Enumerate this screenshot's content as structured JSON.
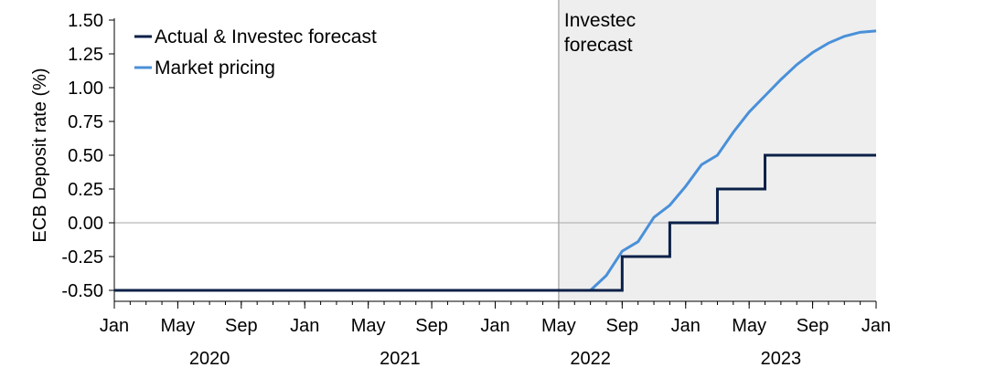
{
  "chart_data": {
    "type": "line",
    "title": "",
    "ylabel": "ECB Deposit rate (%)",
    "xlabel": "",
    "ylim": [
      -0.5,
      1.5
    ],
    "yticks": [
      "1.50",
      "1.25",
      "1.00",
      "0.75",
      "0.50",
      "0.25",
      "0.00",
      "-0.25",
      "-0.50"
    ],
    "ytick_values": [
      1.5,
      1.25,
      1.0,
      0.75,
      0.5,
      0.25,
      0.0,
      -0.25,
      -0.5
    ],
    "xlim": [
      "2020-01",
      "2024-01"
    ],
    "xticks": [
      {
        "date": "2020-01",
        "label": "Jan"
      },
      {
        "date": "2020-05",
        "label": "May"
      },
      {
        "date": "2020-09",
        "label": "Sep"
      },
      {
        "date": "2021-01",
        "label": "Jan"
      },
      {
        "date": "2021-05",
        "label": "May"
      },
      {
        "date": "2021-09",
        "label": "Sep"
      },
      {
        "date": "2022-01",
        "label": "Jan"
      },
      {
        "date": "2022-05",
        "label": "May"
      },
      {
        "date": "2022-09",
        "label": "Sep"
      },
      {
        "date": "2023-01",
        "label": "Jan"
      },
      {
        "date": "2023-05",
        "label": "May"
      },
      {
        "date": "2023-09",
        "label": "Sep"
      },
      {
        "date": "2024-01",
        "label": "Jan"
      }
    ],
    "year_labels": [
      {
        "year": "2020",
        "center": "2020-07"
      },
      {
        "year": "2021",
        "center": "2021-07"
      },
      {
        "year": "2022",
        "center": "2022-07"
      },
      {
        "year": "2023",
        "center": "2023-07"
      }
    ],
    "forecast_region": {
      "start": "2022-05",
      "end": "2024-01",
      "label_lines": [
        "Investec",
        "forecast"
      ]
    },
    "legend": {
      "position": "top-left"
    },
    "grid": false,
    "series": [
      {
        "name": "Actual & Investec forecast",
        "color": "#0b2048",
        "step": true,
        "points": [
          {
            "x": "2020-01",
            "y": -0.5
          },
          {
            "x": "2022-09",
            "y": -0.5
          },
          {
            "x": "2022-09",
            "y": -0.25
          },
          {
            "x": "2022-12",
            "y": -0.25
          },
          {
            "x": "2022-12",
            "y": 0.0
          },
          {
            "x": "2023-03",
            "y": 0.0
          },
          {
            "x": "2023-03",
            "y": 0.25
          },
          {
            "x": "2023-06",
            "y": 0.25
          },
          {
            "x": "2023-06",
            "y": 0.5
          },
          {
            "x": "2024-01",
            "y": 0.5
          }
        ]
      },
      {
        "name": "Market pricing",
        "color": "#4a90d9",
        "step": false,
        "points": [
          {
            "x": "2022-05",
            "y": -0.5
          },
          {
            "x": "2022-06",
            "y": -0.5
          },
          {
            "x": "2022-07",
            "y": -0.5
          },
          {
            "x": "2022-08",
            "y": -0.39
          },
          {
            "x": "2022-09",
            "y": -0.21
          },
          {
            "x": "2022-10",
            "y": -0.14
          },
          {
            "x": "2022-11",
            "y": 0.04
          },
          {
            "x": "2022-12",
            "y": 0.13
          },
          {
            "x": "2023-01",
            "y": 0.27
          },
          {
            "x": "2023-02",
            "y": 0.43
          },
          {
            "x": "2023-03",
            "y": 0.5
          },
          {
            "x": "2023-04",
            "y": 0.67
          },
          {
            "x": "2023-05",
            "y": 0.82
          },
          {
            "x": "2023-06",
            "y": 0.94
          },
          {
            "x": "2023-07",
            "y": 1.06
          },
          {
            "x": "2023-08",
            "y": 1.17
          },
          {
            "x": "2023-09",
            "y": 1.26
          },
          {
            "x": "2023-10",
            "y": 1.33
          },
          {
            "x": "2023-11",
            "y": 1.38
          },
          {
            "x": "2023-12",
            "y": 1.41
          },
          {
            "x": "2024-01",
            "y": 1.42
          }
        ]
      }
    ]
  }
}
